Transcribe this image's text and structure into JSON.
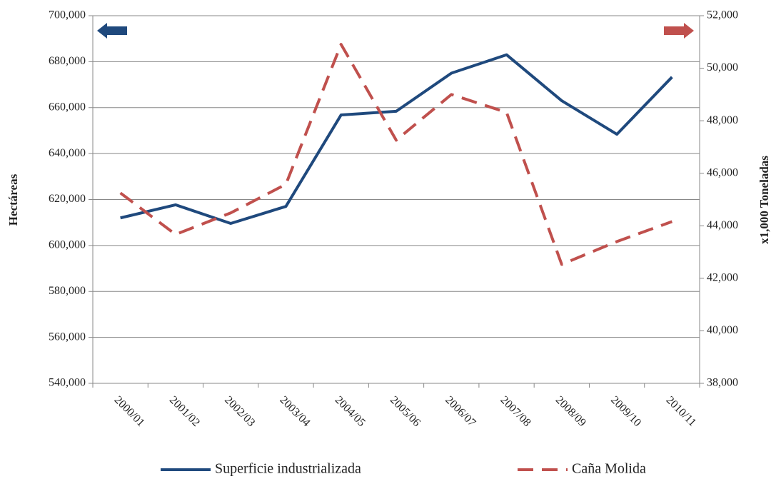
{
  "chart_data": {
    "type": "line",
    "categories": [
      "2000/01",
      "2001/02",
      "2002/03",
      "2003/04",
      "2004/05",
      "2005/06",
      "2006/07",
      "2007/08",
      "2008/09",
      "2009/10",
      "2010/11"
    ],
    "y_label": "Hectáreas",
    "y2_label": "x1,000 Toneladas",
    "ylim": [
      540000,
      700000
    ],
    "yticks": [
      {
        "value": 540000,
        "label": "540,000"
      },
      {
        "value": 560000,
        "label": "560,000"
      },
      {
        "value": 580000,
        "label": "580,000"
      },
      {
        "value": 600000,
        "label": "600,000"
      },
      {
        "value": 620000,
        "label": "620,000"
      },
      {
        "value": 640000,
        "label": "640,000"
      },
      {
        "value": 660000,
        "label": "660,000"
      },
      {
        "value": 680000,
        "label": "680,000"
      },
      {
        "value": 700000,
        "label": "700,000"
      }
    ],
    "y2lim": [
      38000,
      52000
    ],
    "y2ticks": [
      {
        "value": 38000,
        "label": "38,000"
      },
      {
        "value": 40000,
        "label": "40,000"
      },
      {
        "value": 42000,
        "label": "42,000"
      },
      {
        "value": 44000,
        "label": "44,000"
      },
      {
        "value": 46000,
        "label": "46,000"
      },
      {
        "value": 48000,
        "label": "48,000"
      },
      {
        "value": 50000,
        "label": "50,000"
      },
      {
        "value": 52000,
        "label": "52,000"
      }
    ],
    "grid": true,
    "legend": "bottom",
    "series": [
      {
        "name": "Superficie industrializada",
        "color": "#1f497d",
        "dash": "solid",
        "values": [
          612000,
          617700,
          609600,
          617000,
          656800,
          658400,
          675000,
          683000,
          663000,
          648400,
          673300
        ]
      },
      {
        "name": "Caña  Molida",
        "color": "#c0504d",
        "dash": "dashed",
        "axis": "y2",
        "values": [
          45250,
          43670,
          44490,
          45580,
          50910,
          47260,
          49000,
          48320,
          42530,
          43400,
          44160
        ]
      }
    ]
  }
}
